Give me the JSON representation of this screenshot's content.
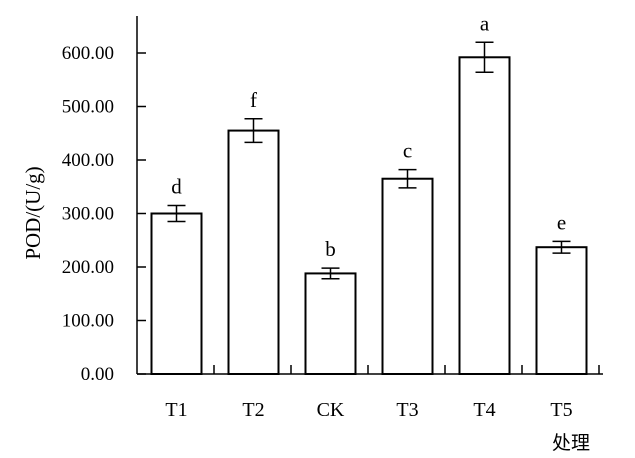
{
  "chart_data": {
    "type": "bar",
    "title": "",
    "xlabel": "处理",
    "ylabel": "POD/(U/g)",
    "ylim": [
      0,
      700
    ],
    "yticks": [
      "0.00",
      "100.00",
      "200.00",
      "300.00",
      "400.00",
      "500.00",
      "600.00"
    ],
    "ytick_values": [
      0,
      100,
      200,
      300,
      400,
      500,
      600
    ],
    "categories": [
      "T1",
      "T2",
      "CK",
      "T3",
      "T4",
      "T5"
    ],
    "values": [
      300,
      455,
      188,
      365,
      592,
      237
    ],
    "errors": [
      15,
      22,
      10,
      17,
      28,
      11
    ],
    "significance": [
      "d",
      "f",
      "b",
      "c",
      "a",
      "e"
    ],
    "grid": false,
    "bar_color": "#ffffff",
    "edge_color": "#000000"
  }
}
